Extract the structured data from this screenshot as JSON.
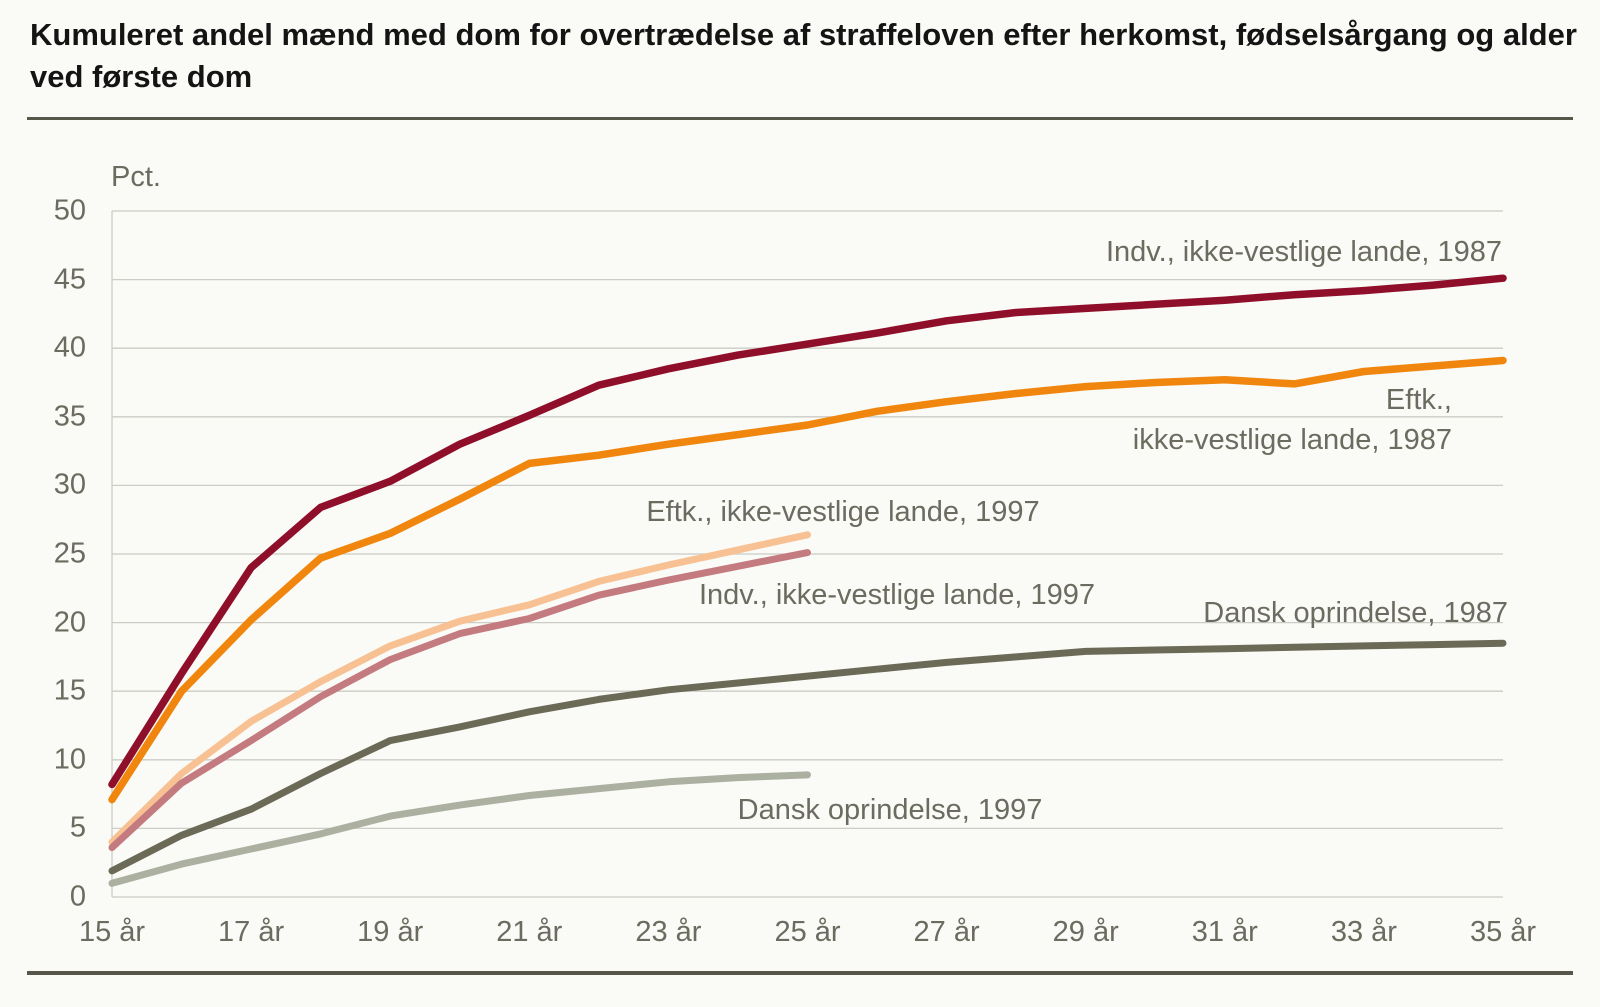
{
  "title_lines": [
    "Kumuleret andel mænd med dom for overtrædelse af straffeloven efter herkomst, fødselsårgang og alder",
    "ved første dom"
  ],
  "chart_data": {
    "type": "line",
    "title": "Kumuleret andel mænd med dom for overtrædelse af straffeloven efter herkomst, fødselsårgang og alder ved første dom",
    "ylabel": "Pct.",
    "ylim": [
      0,
      50
    ],
    "y_ticks": [
      0,
      5,
      10,
      15,
      20,
      25,
      30,
      35,
      40,
      45,
      50
    ],
    "x_tick_ages": [
      15,
      17,
      19,
      21,
      23,
      25,
      27,
      29,
      31,
      33,
      35
    ],
    "x_tick_labels": [
      "15 år",
      "17 år",
      "19 år",
      "21 år",
      "23 år",
      "25 år",
      "27 år",
      "29 år",
      "31 år",
      "33 år",
      "35 år"
    ],
    "grid": true,
    "legend_position": "inline-annotations",
    "series": [
      {
        "name": "Indv., ikke-vestlige lande, 1987",
        "label_lines": [
          "Indv., ikke-vestlige lande, 1987"
        ],
        "color": "#8F0F2B",
        "x": [
          15,
          16,
          17,
          18,
          19,
          20,
          21,
          22,
          23,
          24,
          25,
          26,
          27,
          28,
          29,
          30,
          31,
          32,
          33,
          34,
          35
        ],
        "values": [
          8.2,
          16.3,
          24.0,
          28.4,
          30.3,
          33.0,
          35.1,
          37.3,
          38.5,
          39.5,
          40.3,
          41.1,
          42.0,
          42.6,
          42.9,
          43.2,
          43.5,
          43.9,
          44.2,
          44.6,
          45.1
        ]
      },
      {
        "name": "Eftk., ikke-vestlige lande, 1987",
        "label_lines": [
          "Eftk.,",
          "ikke-vestlige lande, 1987"
        ],
        "color": "#F0860E",
        "x": [
          15,
          16,
          17,
          18,
          19,
          20,
          21,
          22,
          23,
          24,
          25,
          26,
          27,
          28,
          29,
          30,
          31,
          32,
          33,
          34,
          35
        ],
        "values": [
          7.1,
          15.0,
          20.2,
          24.7,
          26.5,
          29.0,
          31.6,
          32.2,
          33.0,
          33.7,
          34.4,
          35.4,
          36.1,
          36.7,
          37.2,
          37.5,
          37.7,
          37.4,
          38.3,
          38.7,
          39.1
        ]
      },
      {
        "name": "Eftk., ikke-vestlige lande, 1997",
        "label_lines": [
          "Eftk., ikke-vestlige lande, 1997"
        ],
        "color": "#F8C193",
        "x": [
          15,
          16,
          17,
          18,
          19,
          20,
          21,
          22,
          23,
          24,
          25
        ],
        "values": [
          4.0,
          9.0,
          12.8,
          15.7,
          18.3,
          20.1,
          21.3,
          23.0,
          24.2,
          25.3,
          26.4
        ]
      },
      {
        "name": "Indv., ikke-vestlige lande, 1997",
        "label_lines": [
          "Indv., ikke-vestlige lande, 1997"
        ],
        "color": "#C47B80",
        "x": [
          15,
          16,
          17,
          18,
          19,
          20,
          21,
          22,
          23,
          24,
          25
        ],
        "values": [
          3.6,
          8.3,
          11.4,
          14.6,
          17.3,
          19.2,
          20.3,
          22.0,
          23.1,
          24.1,
          25.1
        ]
      },
      {
        "name": "Dansk oprindelse, 1987",
        "label_lines": [
          "Dansk oprindelse, 1987"
        ],
        "color": "#6A6A57",
        "x": [
          15,
          16,
          17,
          18,
          19,
          20,
          21,
          22,
          23,
          24,
          25,
          26,
          27,
          28,
          29,
          30,
          31,
          32,
          33,
          34,
          35
        ],
        "values": [
          1.9,
          4.5,
          6.4,
          9.0,
          11.4,
          12.4,
          13.5,
          14.4,
          15.1,
          15.6,
          16.1,
          16.6,
          17.1,
          17.5,
          17.9,
          18.0,
          18.1,
          18.2,
          18.3,
          18.4,
          18.5
        ]
      },
      {
        "name": "Dansk oprindelse, 1997",
        "label_lines": [
          "Dansk oprindelse, 1997"
        ],
        "color": "#ABB0A0",
        "x": [
          15,
          16,
          17,
          18,
          19,
          20,
          21,
          22,
          23,
          24,
          25
        ],
        "values": [
          1.0,
          2.4,
          3.5,
          4.6,
          5.9,
          6.7,
          7.4,
          7.9,
          8.4,
          8.7,
          8.9
        ]
      }
    ]
  }
}
